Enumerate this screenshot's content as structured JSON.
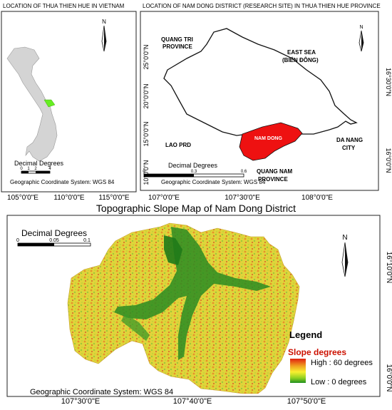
{
  "panel_vietnam": {
    "title": "LOCATION OF THUA THIEN HUE IN VIETNAM",
    "scale_title": "Decimal Degrees",
    "scale_ticks": [
      "0",
      "1",
      "2",
      "4"
    ],
    "coord_system": "Geographic Coordinate System: WGS 84",
    "x_ticks": [
      "105°0'0\"E",
      "110°0'0\"E",
      "115°0'0\"E"
    ],
    "north": "N",
    "highlight_color": "#66ee22"
  },
  "panel_district": {
    "title": "LOCATION OF NAM DONG DISTRICT (RESEARCH SITE) IN THUA THIEN HUE PROVINCE",
    "labels": {
      "quang_tri": [
        "QUANG TRI",
        "PROVINCE"
      ],
      "east_sea": [
        "EAST SEA",
        "(BIỂN ĐÔNG)"
      ],
      "nam_dong": "NAM DONG",
      "lao": "LAO PRD",
      "da_nang": [
        "DA NANG",
        "CITY"
      ],
      "quang_nam": [
        "QUANG NAM",
        "PROVINCE"
      ]
    },
    "scale_title": "Decimal Degrees",
    "scale_ticks": [
      "0",
      "0.3",
      "0.6"
    ],
    "coord_system": "Geographic Coordinate System: WGS 84",
    "x_ticks": [
      "107°0'0\"E",
      "107°30'0\"E",
      "108°0'0\"E"
    ],
    "y_ticks_left": [
      "25°0'0\"N",
      "20°0'0\"N",
      "15°0'0\"N",
      "10°0'0\"N"
    ],
    "y_ticks_right": [
      "16°30'0\"N",
      "16°0'0\"N"
    ],
    "north": "N",
    "highlight_color": "#ee1111"
  },
  "slope_map": {
    "title": "Topographic Slope Map of Nam Dong District",
    "scale_title": "Decimal Degrees",
    "scale_ticks": [
      "0",
      "0.05",
      "0.1"
    ],
    "coord_system": "Geographic Coordinate System: WGS 84",
    "x_ticks": [
      "107°30'0\"E",
      "107°40'0\"E",
      "107°50'0\"E"
    ],
    "y_ticks": [
      "16°10'0\"N",
      "16°0'0\"N"
    ],
    "north": "N",
    "legend": {
      "title": "Legend",
      "subtitle": "Slope degrees",
      "high": "High : 60  degrees",
      "low": "Low : 0 degrees",
      "colors": [
        "#e02010",
        "#f0a020",
        "#f8f030",
        "#90d020",
        "#209020"
      ]
    }
  }
}
